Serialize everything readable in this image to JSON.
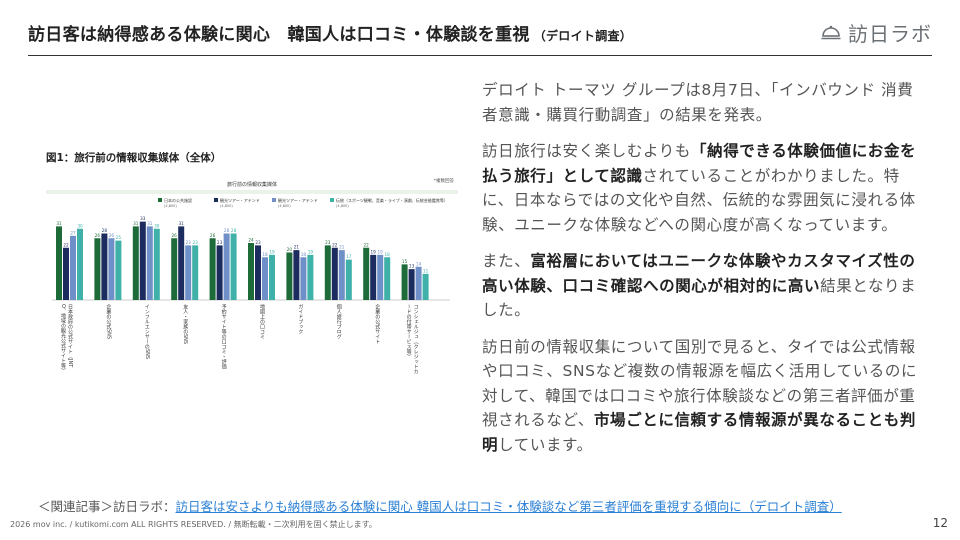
{
  "header": {
    "title": "訪日客は納得感ある体験に関心　韓国人は口コミ・体験談を重視",
    "subtitle": "（デロイト調査）",
    "logo_text": "訪日ラボ",
    "logo_icon": "domed-cloche-icon"
  },
  "figure": {
    "title": "図1：旅行前の情報収集媒体（全体）",
    "chart_header": "旅行前の情報収集媒体",
    "unit_note": "*複数回答",
    "legend": [
      {
        "label": "日本の公共施設",
        "n": "(4,800)",
        "color": "#1e6b3a"
      },
      {
        "label": "観光ツアー・アテンド",
        "n": "(4,800)",
        "color": "#1c2c5e"
      },
      {
        "label": "観光ツアー・アテンド",
        "n": "(4,800)",
        "color": "#6f8fc8"
      },
      {
        "label": "伝統（スポーツ観戦、音楽・ライブ・演劇、伝統芸能鑑賞等）",
        "n": "(4,800)",
        "color": "#3fb1a8"
      }
    ]
  },
  "chart_data": {
    "type": "bar",
    "title": "旅行前の情報収集媒体",
    "categories": [
      "日本政府の公式サイト（JNTO、地域の観光公式サイト等）",
      "企業の公式SNS",
      "インフルエンサーのSNS",
      "友人・家族のSNS",
      "予約サイト等の口コミ・評価",
      "地図上の口コミ",
      "ガイドブック",
      "個人旅行ブログ",
      "企業の公式サイト",
      "コンシェルジュ（クレジットカードの付帯サービス等）"
    ],
    "series": [
      {
        "name": "日本の公共施設",
        "values": [
          31,
          26,
          31,
          26,
          26,
          24,
          20,
          23,
          22,
          15
        ]
      },
      {
        "name": "観光ツアー・アテンド",
        "values": [
          22,
          28,
          33,
          31,
          23,
          23,
          21,
          22,
          19,
          13
        ]
      },
      {
        "name": "観光ツアー・アテンド",
        "values": [
          27,
          26,
          31,
          23,
          28,
          18,
          18,
          21,
          19,
          14
        ]
      },
      {
        "name": "伝統（スポーツ観戦、音楽・ライブ・演劇、伝統芸能鑑賞等）",
        "values": [
          30,
          25,
          30,
          23,
          28,
          19,
          19,
          17,
          18,
          11
        ]
      }
    ],
    "ylim": [
      0,
      40
    ]
  },
  "body": {
    "p1": "デロイト トーマツ グループは8月7日、「インバウンド 消費者意識・購買行動調査」の結果を発表。",
    "p2_a": "訪日旅行は安く楽しむよりも",
    "p2_b": "「納得できる体験価値にお金を払う旅行」として認識",
    "p2_c": "されていることがわかりました。特に、日本ならではの文化や自然、伝統的な雰囲気に浸れる体験、ユニークな体験などへの関心度が高くなっています。",
    "p3_a": "また、",
    "p3_b": "富裕層においてはユニークな体験やカスタマイズ性の高い体験、口コミ確認への関心が相対的に高い",
    "p3_c": "結果となりました。",
    "p4_a": "訪日前の情報収集について国別で見ると、タイでは公式情報や口コミ、SNSなど複数の情報源を幅広く活用しているのに対して、韓国では口コミや旅行体験談などの第三者評価が重視されるなど、",
    "p4_b": "市場ごとに信頼する情報源が異なることも判明",
    "p4_c": "しています。"
  },
  "related": {
    "prefix": "＜関連記事＞訪日ラボ：",
    "link": "訪日客は安さよりも納得感ある体験に関心 韓国人は口コミ・体験談など第三者評価を重視する傾向に（デロイト調査）"
  },
  "footer": {
    "copyright": "2026 mov inc. / kutikomi.com ALL RIGHTS RESERVED. / 無断転載・二次利用を固く禁止します。",
    "page": "12"
  }
}
